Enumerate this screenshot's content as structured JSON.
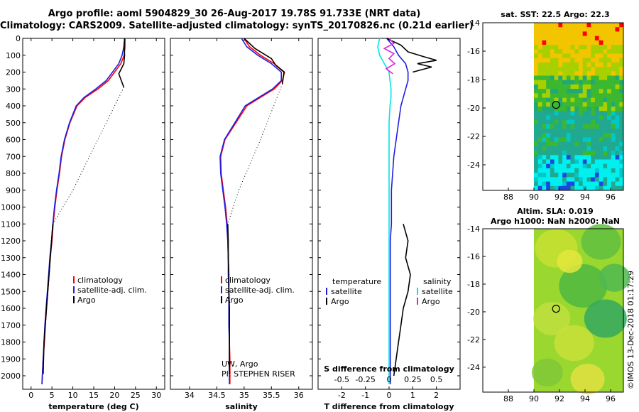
{
  "titles": {
    "line1": "Argo profile: aoml 5904829_30 26-Aug-2017 19.78S 91.733E (NRT data)",
    "line2": "Climatology: CARS2009. Satellite-adjusted climatology: synTS_20170826.nc (0.21d earlier)"
  },
  "side_credit": "©IMOS 13-Dec-2018 01:17:29",
  "colors": {
    "climatology": "#ff0000",
    "satellite": "#1f1fe0",
    "argo": "#000000",
    "sal_satellite": "#00e5e5",
    "sal_argo": "#e020e0"
  },
  "chart_data": [
    {
      "type": "line",
      "xlabel": "temperature (deg C)",
      "ylabel": "",
      "xlim": [
        -2,
        32
      ],
      "ylim": [
        2080,
        0
      ],
      "xticks": [
        "0",
        "5",
        "10",
        "15",
        "20",
        "25",
        "30"
      ],
      "yticks": [
        "0",
        "100",
        "200",
        "300",
        "400",
        "500",
        "600",
        "700",
        "800",
        "900",
        "1000",
        "1100",
        "1200",
        "1300",
        "1400",
        "1500",
        "1600",
        "1700",
        "1800",
        "1900",
        "2000"
      ],
      "legend": [
        "climatology",
        "satellite-adj. clim.",
        "Argo"
      ],
      "series": [
        {
          "name": "climatology",
          "x": [
            22.5,
            22.5,
            22.3,
            21.5,
            20,
            18.5,
            16,
            13,
            11,
            9.3,
            8.1,
            7.3,
            6.8,
            6.2,
            5.7,
            5.3,
            5.0,
            4.6,
            4.3,
            4.0,
            3.7,
            3.4,
            3.2,
            2.9,
            2.7,
            2.6
          ],
          "y": [
            0,
            50,
            100,
            150,
            200,
            250,
            300,
            350,
            400,
            500,
            600,
            700,
            800,
            900,
            1000,
            1100,
            1200,
            1300,
            1400,
            1500,
            1600,
            1700,
            1800,
            1900,
            2000,
            2050
          ]
        },
        {
          "name": "satellite-adj. clim.",
          "x": [
            22.4,
            22.2,
            21.8,
            21.0,
            19.5,
            18.0,
            15.5,
            12.7,
            10.8,
            9.2,
            8.0,
            7.2,
            6.7,
            6.1,
            5.6,
            5.2,
            4.9,
            4.5,
            4.2,
            3.9,
            3.6,
            3.3,
            3.1,
            2.9,
            2.7,
            2.6
          ],
          "y": [
            0,
            50,
            100,
            150,
            200,
            250,
            300,
            350,
            400,
            500,
            600,
            700,
            800,
            900,
            1000,
            1100,
            1200,
            1300,
            1400,
            1500,
            1600,
            1700,
            1800,
            1900,
            2000,
            2050
          ]
        },
        {
          "name": "Argo",
          "x": [
            22.4,
            22.3,
            22.4,
            22.2,
            21.0,
            22.2
          ],
          "y": [
            0,
            50,
            100,
            150,
            210,
            290
          ]
        },
        {
          "name": "Argo (deep)",
          "x": [
            5.2,
            4.9,
            4.6,
            4.3,
            4.0,
            3.7,
            3.4,
            3.1,
            2.9
          ],
          "y": [
            1100,
            1200,
            1300,
            1400,
            1500,
            1600,
            1700,
            1800,
            1990
          ]
        },
        {
          "name": "Argo (interp)",
          "x": [
            22.2,
            16,
            10,
            5.2
          ],
          "y": [
            290,
            600,
            900,
            1100
          ]
        }
      ]
    },
    {
      "type": "line",
      "xlabel": "salinity",
      "xlim": [
        33.65,
        36.25
      ],
      "ylim": [
        2080,
        0
      ],
      "xticks": [
        "34",
        "34.5",
        "35",
        "35.5",
        "36"
      ],
      "legend": [
        "climatology",
        "satellite-adj. clim.",
        "Argo"
      ],
      "annotation": [
        "UW, Argo",
        "PI: STEPHEN RISER"
      ],
      "series": [
        {
          "name": "climatology",
          "x": [
            35.0,
            35.1,
            35.3,
            35.55,
            35.74,
            35.7,
            35.55,
            35.3,
            35.05,
            34.85,
            34.65,
            34.57,
            34.58,
            34.62,
            34.66,
            34.69,
            34.7,
            34.71,
            34.72,
            34.72,
            34.73,
            34.73,
            34.73,
            34.74,
            34.74
          ],
          "y": [
            0,
            50,
            100,
            150,
            200,
            250,
            300,
            350,
            400,
            500,
            600,
            700,
            800,
            900,
            1000,
            1100,
            1200,
            1300,
            1400,
            1500,
            1600,
            1700,
            1800,
            1900,
            2050
          ]
        },
        {
          "name": "satellite-adj. clim.",
          "x": [
            34.95,
            35.05,
            35.25,
            35.5,
            35.68,
            35.68,
            35.52,
            35.27,
            35.02,
            34.83,
            34.64,
            34.56,
            34.57,
            34.61,
            34.65,
            34.68,
            34.7,
            34.71,
            34.71,
            34.72,
            34.72,
            34.72,
            34.73,
            34.73,
            34.73
          ],
          "y": [
            0,
            50,
            100,
            150,
            200,
            250,
            300,
            350,
            400,
            500,
            600,
            700,
            800,
            900,
            1000,
            1100,
            1200,
            1300,
            1400,
            1500,
            1600,
            1700,
            1800,
            1900,
            2050
          ]
        },
        {
          "name": "Argo",
          "x": [
            35.0,
            35.2,
            35.5,
            35.58,
            35.73,
            35.7
          ],
          "y": [
            0,
            60,
            120,
            160,
            200,
            270
          ]
        },
        {
          "name": "Argo (deep)",
          "x": [
            34.7,
            34.71,
            34.71,
            34.72,
            34.72,
            34.73,
            34.73,
            34.73,
            34.73
          ],
          "y": [
            1100,
            1200,
            1300,
            1400,
            1500,
            1600,
            1700,
            1800,
            1990
          ]
        },
        {
          "name": "Argo (interp)",
          "x": [
            35.7,
            35.3,
            34.9,
            34.7
          ],
          "y": [
            270,
            600,
            900,
            1100
          ]
        }
      ]
    },
    {
      "type": "line",
      "xlabel": "T difference from climatology",
      "xlim": [
        -3,
        3
      ],
      "ylim": [
        2080,
        0
      ],
      "xticks": [
        "-2",
        "-1",
        "0",
        "1",
        "2"
      ],
      "secondary_xlabel": "S difference from climatology",
      "secondary_xticks": [
        "-0.5",
        "-0.25",
        "0",
        "0.25",
        "0.5"
      ],
      "secondary_xlim": [
        -0.75,
        0.75
      ],
      "legend_temperature": [
        "temperature",
        "satellite",
        "Argo"
      ],
      "legend_salinity": [
        "salinity",
        "satellite",
        "Argo"
      ],
      "series": [
        {
          "name": "T satellite",
          "x": [
            -0.1,
            0.2,
            0.4,
            0.7,
            0.8,
            0.8,
            0.7,
            0.6,
            0.5,
            0.4,
            0.3,
            0.2,
            0.15,
            0.1,
            0.1,
            0.1,
            0.05,
            0.05,
            0.05,
            0.05,
            0.05,
            0.05,
            0.05,
            0.05,
            0.05
          ],
          "y": [
            0,
            50,
            100,
            150,
            200,
            250,
            300,
            350,
            400,
            500,
            600,
            700,
            800,
            900,
            1000,
            1100,
            1200,
            1300,
            1400,
            1500,
            1600,
            1700,
            1800,
            1900,
            2050
          ]
        },
        {
          "name": "T Argo",
          "x": [
            -0.1,
            0.5,
            0.8,
            1.5,
            2.0,
            1.2,
            1.8,
            1.0
          ],
          "y": [
            0,
            40,
            80,
            110,
            130,
            150,
            170,
            200
          ]
        },
        {
          "name": "T Argo (deep)",
          "x": [
            0.6,
            0.8,
            0.7,
            0.9,
            0.8,
            0.6,
            0.5,
            0.4,
            0.3,
            0.2
          ],
          "y": [
            1100,
            1200,
            1300,
            1400,
            1500,
            1600,
            1700,
            1800,
            1900,
            2000
          ]
        },
        {
          "name": "S satellite",
          "x": [
            -0.1,
            -0.12,
            -0.1,
            -0.05,
            0,
            0.01,
            0.02,
            0.02,
            0.01,
            0,
            0,
            0,
            0,
            0,
            0,
            0,
            0,
            0,
            0,
            0,
            0,
            0
          ],
          "y": [
            0,
            50,
            100,
            150,
            200,
            250,
            300,
            350,
            400,
            500,
            600,
            700,
            800,
            900,
            1000,
            1200,
            1400,
            1600,
            1800,
            1900,
            2000,
            2050
          ]
        },
        {
          "name": "S Argo",
          "x": [
            0,
            0.05,
            -0.05,
            0.05,
            0,
            0.06,
            -0.03,
            0.04
          ],
          "y": [
            0,
            30,
            60,
            90,
            120,
            150,
            180,
            210
          ]
        }
      ]
    },
    {
      "type": "heatmap",
      "title": "sat. SST: 22.5 Argo: 22.3",
      "xticks": [
        "88",
        "90",
        "92",
        "94",
        "96"
      ],
      "yticks": [
        "-14",
        "-16",
        "-18",
        "-20",
        "-22",
        "-24"
      ],
      "xlim": [
        86,
        97
      ],
      "ylim": [
        -25.8,
        -14
      ],
      "marker": {
        "x": 91.733,
        "y": -19.78
      }
    },
    {
      "type": "heatmap",
      "title_lines": [
        "Altim. SLA: 0.019",
        "Argo h1000: NaN h2000: NaN"
      ],
      "xticks": [
        "88",
        "90",
        "92",
        "94",
        "96"
      ],
      "yticks": [
        "-14",
        "-16",
        "-18",
        "-20",
        "-22",
        "-24"
      ],
      "xlim": [
        86,
        97
      ],
      "ylim": [
        -25.8,
        -14
      ],
      "marker": {
        "x": 91.733,
        "y": -19.78
      }
    }
  ]
}
